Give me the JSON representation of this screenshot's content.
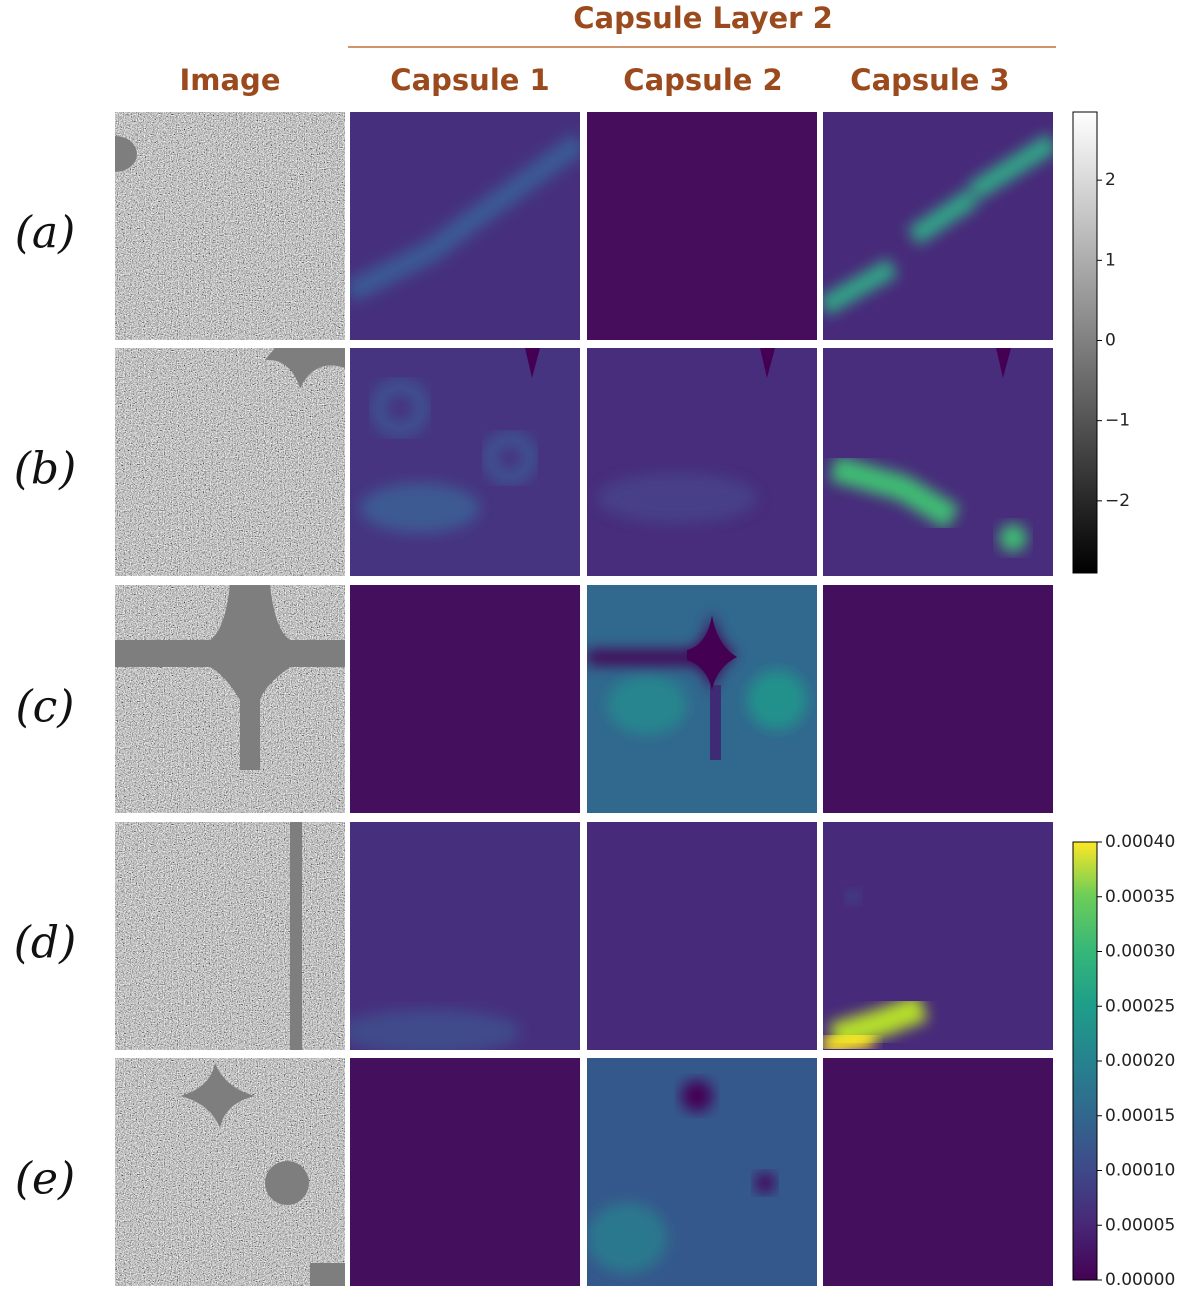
{
  "group_title": "Capsule Layer 2",
  "column_headers": [
    "Image",
    "Capsule 1",
    "Capsule 2",
    "Capsule 3"
  ],
  "row_labels": [
    "(a)",
    "(b)",
    "(c)",
    "(d)",
    "(e)"
  ],
  "colorbars": [
    {
      "cmap": "gray",
      "ylim": [
        -2.9,
        2.85
      ],
      "yticks": [
        {
          "value": -2,
          "label": "−2"
        },
        {
          "value": -1,
          "label": "−1"
        },
        0,
        1,
        2
      ]
    },
    {
      "cmap": "viridis",
      "ylim": [
        0,
        0.0004
      ],
      "yticks": [
        {
          "value": 0,
          "label": "0.00000"
        },
        {
          "value": 5e-05,
          "label": "0.00005"
        },
        {
          "value": 0.0001,
          "label": "0.00010"
        },
        {
          "value": 0.00015,
          "label": "0.00015"
        },
        {
          "value": 0.0002,
          "label": "0.00020"
        },
        {
          "value": 0.00025,
          "label": "0.00025"
        },
        {
          "value": 0.0003,
          "label": "0.00030"
        },
        {
          "value": 0.00035,
          "label": "0.00035"
        },
        {
          "value": 0.0004,
          "label": "0.00040"
        }
      ]
    }
  ]
}
